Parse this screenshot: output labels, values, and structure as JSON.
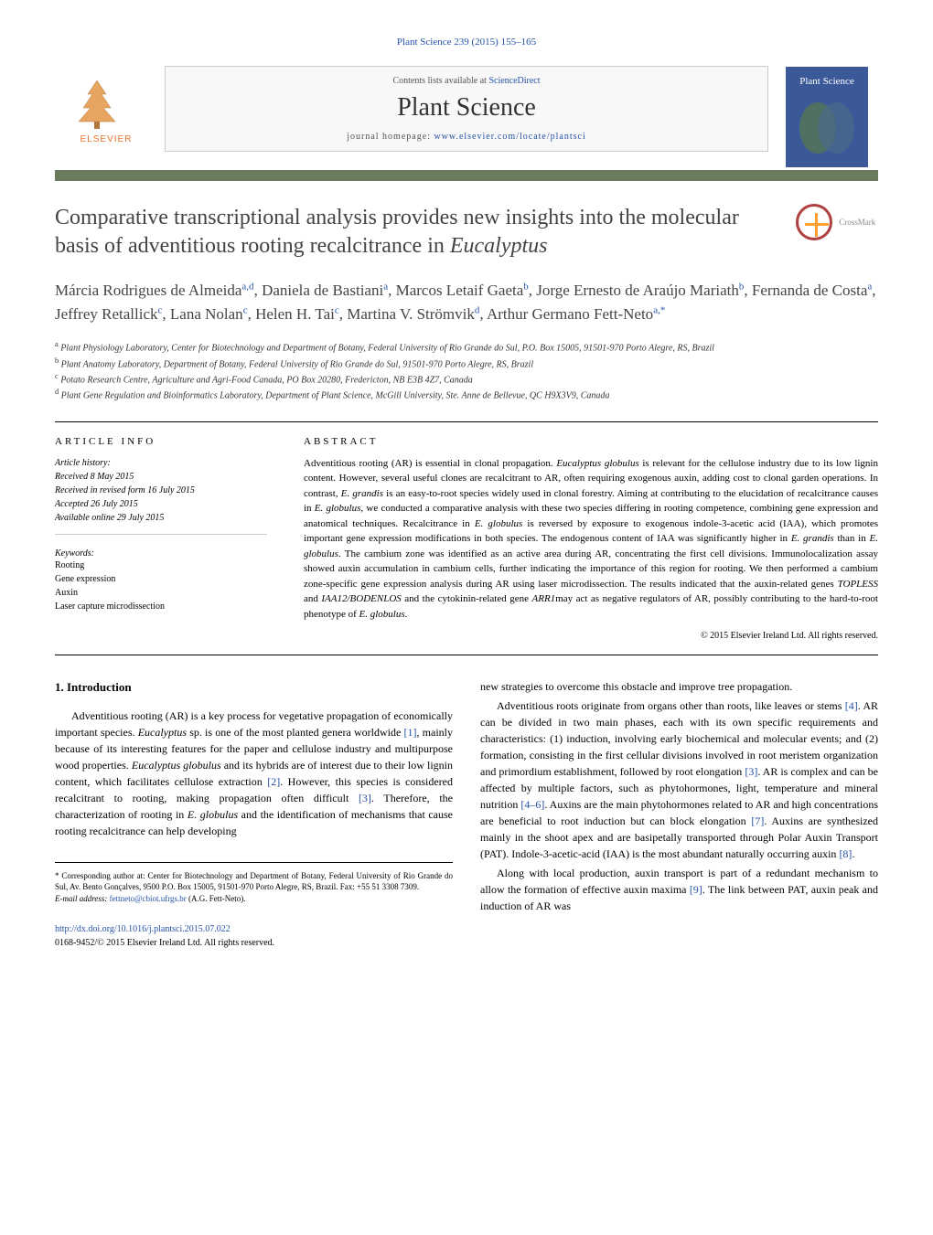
{
  "header": {
    "citation": "Plant Science 239 (2015) 155–165",
    "contents_text": "Contents lists available at ",
    "contents_link": "ScienceDirect",
    "journal_name": "Plant Science",
    "homepage_text": "journal homepage: ",
    "homepage_link": "www.elsevier.com/locate/plantsci",
    "elsevier_label": "ELSEVIER",
    "cover_label": "Plant Science",
    "crossmark_label": "CrossMark"
  },
  "title": "Comparative transcriptional analysis provides new insights into the molecular basis of adventitious rooting recalcitrance in Eucalyptus",
  "authors_html": "Márcia Rodrigues de Almeida<sup>a,d</sup>, Daniela de Bastiani<sup>a</sup>, Marcos Letaif Gaeta<sup>b</sup>, Jorge Ernesto de Araújo Mariath<sup>b</sup>, Fernanda de Costa<sup>a</sup>, Jeffrey Retallick<sup>c</sup>, Lana Nolan<sup>c</sup>, Helen H. Tai<sup>c</sup>, Martina V. Strömvik<sup>d</sup>, Arthur Germano Fett-Neto<sup>a,*</sup>",
  "affiliations": {
    "a": "Plant Physiology Laboratory, Center for Biotechnology and Department of Botany, Federal University of Rio Grande do Sul, P.O. Box 15005, 91501-970 Porto Alegre, RS, Brazil",
    "b": "Plant Anatomy Laboratory, Department of Botany, Federal University of Rio Grande do Sul, 91501-970 Porto Alegre, RS, Brazil",
    "c": "Potato Research Centre, Agriculture and Agri-Food Canada, PO Box 20280, Fredericton, NB E3B 4Z7, Canada",
    "d": "Plant Gene Regulation and Bioinformatics Laboratory, Department of Plant Science, McGill University, Ste. Anne de Bellevue, QC H9X3V9, Canada"
  },
  "article_info": {
    "heading": "article info",
    "history_label": "Article history:",
    "received": "Received 8 May 2015",
    "revised": "Received in revised form 16 July 2015",
    "accepted": "Accepted 26 July 2015",
    "online": "Available online 29 July 2015",
    "keywords_label": "Keywords:",
    "keywords": [
      "Rooting",
      "Gene expression",
      "Auxin",
      "Laser capture microdissection"
    ]
  },
  "abstract": {
    "heading": "abstract",
    "text": "Adventitious rooting (AR) is essential in clonal propagation. Eucalyptus globulus is relevant for the cellulose industry due to its low lignin content. However, several useful clones are recalcitrant to AR, often requiring exogenous auxin, adding cost to clonal garden operations. In contrast, E. grandis is an easy-to-root species widely used in clonal forestry. Aiming at contributing to the elucidation of recalcitrance causes in E. globulus, we conducted a comparative analysis with these two species differing in rooting competence, combining gene expression and anatomical techniques. Recalcitrance in E. globulus is reversed by exposure to exogenous indole-3-acetic acid (IAA), which promotes important gene expression modifications in both species. The endogenous content of IAA was significantly higher in E. grandis than in E. globulus. The cambium zone was identified as an active area during AR, concentrating the first cell divisions. Immunolocalization assay showed auxin accumulation in cambium cells, further indicating the importance of this region for rooting. We then performed a cambium zone-specific gene expression analysis during AR using laser microdissection. The results indicated that the auxin-related genes TOPLESS and IAA12/BODENLOS and the cytokinin-related gene ARR1may act as negative regulators of AR, possibly contributing to the hard-to-root phenotype of E. globulus.",
    "copyright": "© 2015 Elsevier Ireland Ltd. All rights reserved."
  },
  "body": {
    "section_heading": "1. Introduction",
    "col1_p1": "Adventitious rooting (AR) is a key process for vegetative propagation of economically important species. Eucalyptus sp. is one of the most planted genera worldwide [1], mainly because of its interesting features for the paper and cellulose industry and multipurpose wood properties. Eucalyptus globulus and its hybrids are of interest due to their low lignin content, which facilitates cellulose extraction [2]. However, this species is considered recalcitrant to rooting, making propagation often difficult [3]. Therefore, the characterization of rooting in E. globulus and the identification of mechanisms that cause rooting recalcitrance can help developing",
    "col2_p1": "new strategies to overcome this obstacle and improve tree propagation.",
    "col2_p2": "Adventitious roots originate from organs other than roots, like leaves or stems [4]. AR can be divided in two main phases, each with its own specific requirements and characteristics: (1) induction, involving early biochemical and molecular events; and (2) formation, consisting in the first cellular divisions involved in root meristem organization and primordium establishment, followed by root elongation [3]. AR is complex and can be affected by multiple factors, such as phytohormones, light, temperature and mineral nutrition [4–6]. Auxins are the main phytohormones related to AR and high concentrations are beneficial to root induction but can block elongation [7]. Auxins are synthesized mainly in the shoot apex and are basipetally transported through Polar Auxin Transport (PAT). Indole-3-acetic-acid (IAA) is the most abundant naturally occurring auxin [8].",
    "col2_p3": "Along with local production, auxin transport is part of a redundant mechanism to allow the formation of effective auxin maxima [9]. The link between PAT, auxin peak and induction of AR was"
  },
  "footer": {
    "corresponding": "* Corresponding author at: Center for Biotechnology and Department of Botany, Federal University of Rio Grande do Sul, Av. Bento Gonçalves, 9500 P.O. Box 15005, 91501-970 Porto Alegre, RS, Brazil. Fax: +55 51 3308 7309.",
    "email_label": "E-mail address: ",
    "email": "fettneto@cbiot.ufrgs.br",
    "email_name": " (A.G. Fett-Neto).",
    "doi_link": "http://dx.doi.org/10.1016/j.plantsci.2015.07.022",
    "issn": "0168-9452/© 2015 Elsevier Ireland Ltd. All rights reserved."
  },
  "colors": {
    "link": "#2552a8",
    "divider": "#6a7a5d",
    "crossmark_ring": "#b04040",
    "crossmark_cross": "#ffa030"
  }
}
